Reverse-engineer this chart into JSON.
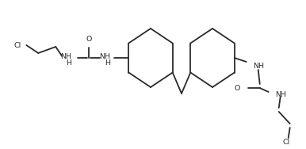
{
  "figsize": [
    3.86,
    1.88
  ],
  "dpi": 100,
  "bg_color": "#ffffff",
  "line_color": "#2a2a2a",
  "line_width": 1.3,
  "font_size": 6.8,
  "font_color": "#2a2a2a",
  "xlim": [
    0,
    386
  ],
  "ylim": [
    0,
    188
  ]
}
